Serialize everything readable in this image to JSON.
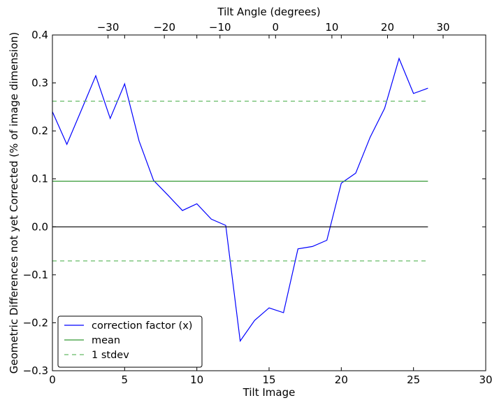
{
  "chart_data": {
    "type": "line",
    "xlabel": "Tilt Image",
    "ylabel": "Geometric Differences not yet Corrected (% of image dimension)",
    "x2label": "Tilt Angle (degrees)",
    "xlim": [
      0,
      30
    ],
    "ylim": [
      -0.3,
      0.4
    ],
    "xticks": [
      0,
      5,
      10,
      15,
      20,
      25,
      30
    ],
    "xtick_labels": [
      "0",
      "5",
      "10",
      "15",
      "20",
      "25",
      "30"
    ],
    "yticks": [
      -0.3,
      -0.2,
      -0.1,
      0.0,
      0.1,
      0.2,
      0.3,
      0.4
    ],
    "ytick_labels": [
      "−0.3",
      "−0.2",
      "−0.1",
      "0.0",
      "0.1",
      "0.2",
      "0.3",
      "0.4"
    ],
    "x2_ticks_at": [
      3.85,
      7.75,
      11.6,
      15.45,
      19.35,
      23.2,
      27.05
    ],
    "x2_tick_labels": [
      "−30",
      "−20",
      "−10",
      "0",
      "10",
      "20",
      "30"
    ],
    "grid": false,
    "legend_position": "lower-left",
    "series": [
      {
        "name": "correction factor (x)",
        "color": "#0000ff",
        "style": "solid",
        "x": [
          0,
          1,
          2,
          3,
          4,
          5,
          6,
          7,
          8,
          9,
          10,
          11,
          12,
          13,
          14,
          15,
          16,
          17,
          18,
          19,
          20,
          21,
          22,
          23,
          24,
          25,
          26
        ],
        "y": [
          0.24,
          0.172,
          0.243,
          0.315,
          0.226,
          0.298,
          0.179,
          0.097,
          0.066,
          0.034,
          0.048,
          0.016,
          0.003,
          -0.238,
          -0.195,
          -0.169,
          -0.179,
          -0.046,
          -0.041,
          -0.028,
          0.091,
          0.112,
          0.187,
          0.247,
          0.351,
          0.278,
          0.289
        ]
      },
      {
        "name": "mean",
        "color": "#339933",
        "style": "solid",
        "x": [
          0,
          26
        ],
        "y": [
          0.095,
          0.095
        ]
      },
      {
        "name": "1 stdev",
        "color": "#66bb66",
        "style": "dashed",
        "x": [
          0,
          26
        ],
        "y": [
          0.262,
          0.262
        ]
      },
      {
        "name": "",
        "color": "#66bb66",
        "style": "dashed",
        "x": [
          0,
          26
        ],
        "y": [
          -0.071,
          -0.071
        ]
      },
      {
        "name": "",
        "color": "#000000",
        "style": "solid",
        "x": [
          0,
          26
        ],
        "y": [
          0.0,
          0.0
        ]
      }
    ]
  }
}
